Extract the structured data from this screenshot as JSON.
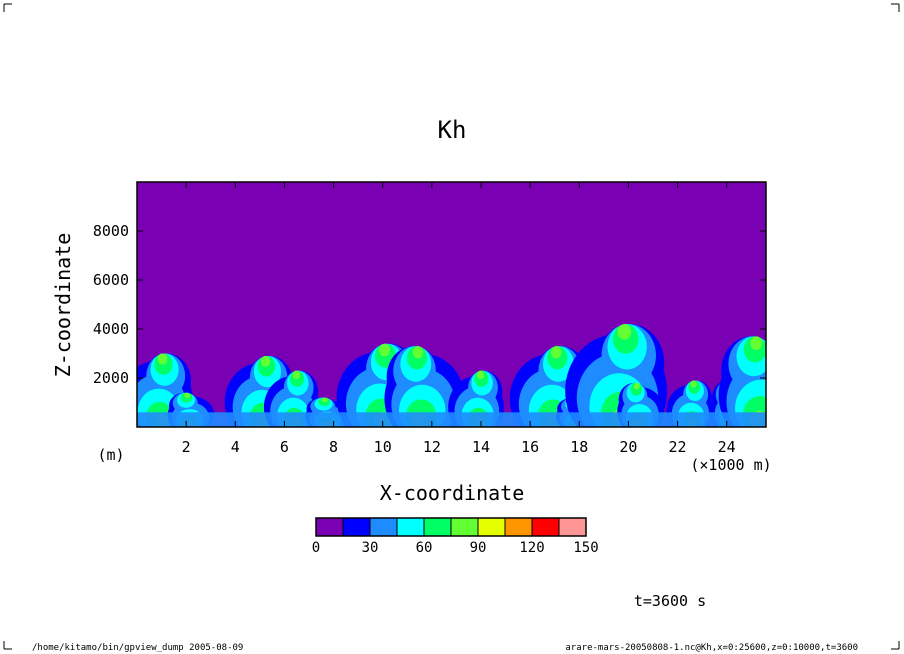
{
  "chart_data": {
    "type": "heatmap",
    "title": "Kh",
    "xlabel": "X-coordinate",
    "ylabel": "Z-coordinate",
    "x_unit": "(×1000 m)",
    "y_unit": "(m)",
    "xlim": [
      0,
      25.6
    ],
    "ylim": [
      0,
      10000
    ],
    "x_ticks": [
      2,
      4,
      6,
      8,
      10,
      12,
      14,
      16,
      18,
      20,
      22,
      24
    ],
    "y_ticks": [
      2000,
      4000,
      6000,
      8000
    ],
    "grid": false,
    "colorbar": {
      "levels": [
        0,
        15,
        30,
        45,
        60,
        75,
        90,
        105,
        120,
        135,
        150
      ],
      "tick_labels": [
        0,
        30,
        60,
        90,
        120,
        150
      ],
      "colors": [
        "#7a00b4",
        "#0000ff",
        "#1e8cff",
        "#00ffff",
        "#00ff64",
        "#64ff32",
        "#e6ff00",
        "#ff9600",
        "#ff0000",
        "#ff9696"
      ]
    },
    "background_color": "#7a00b4",
    "plumes": [
      {
        "x": 0.8,
        "top": 3000,
        "lean": 1
      },
      {
        "x": 2.2,
        "top": 1400,
        "lean": -1
      },
      {
        "x": 5.0,
        "top": 2900,
        "lean": 1
      },
      {
        "x": 6.3,
        "top": 2300,
        "lean": 1
      },
      {
        "x": 7.8,
        "top": 1200,
        "lean": -1
      },
      {
        "x": 9.8,
        "top": 3400,
        "lean": 1
      },
      {
        "x": 11.7,
        "top": 3300,
        "lean": -1
      },
      {
        "x": 13.8,
        "top": 2300,
        "lean": 1
      },
      {
        "x": 16.8,
        "top": 3300,
        "lean": 1
      },
      {
        "x": 18.0,
        "top": 1200,
        "lean": -1
      },
      {
        "x": 19.5,
        "top": 4200,
        "lean": 1
      },
      {
        "x": 20.5,
        "top": 1800,
        "lean": -1
      },
      {
        "x": 22.5,
        "top": 1900,
        "lean": 1
      },
      {
        "x": 24.3,
        "top": 1900,
        "lean": -1
      },
      {
        "x": 25.5,
        "top": 3700,
        "lean": -1
      }
    ],
    "annotations": {
      "time": "t=3600 s",
      "footer_left": "/home/kitamo/bin/gpview_dump  2005-08-09",
      "footer_right": "arare-mars-20050808-1.nc@Kh,x=0:25600,z=0:10000,t=3600"
    }
  }
}
